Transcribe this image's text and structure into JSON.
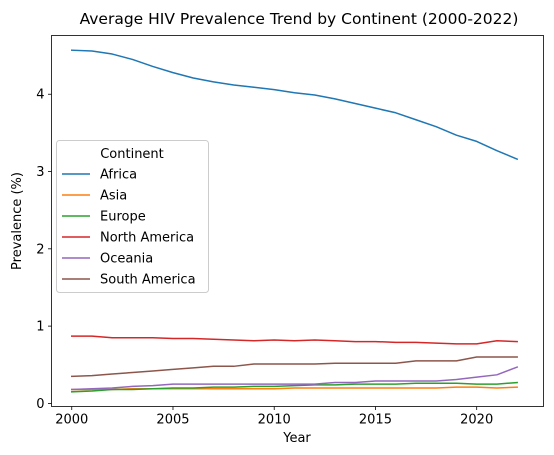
{
  "chart_data": {
    "type": "line",
    "title": "Average HIV Prevalence Trend by Continent (2000-2022)",
    "xlabel": "Year",
    "ylabel": "Prevalence (%)",
    "x": [
      2000,
      2001,
      2002,
      2003,
      2004,
      2005,
      2006,
      2007,
      2008,
      2009,
      2010,
      2011,
      2012,
      2013,
      2014,
      2015,
      2016,
      2017,
      2018,
      2019,
      2020,
      2021,
      2022
    ],
    "xlim": [
      1999,
      2023.3
    ],
    "ylim": [
      -0.04,
      4.76
    ],
    "xticks": [
      2000,
      2005,
      2010,
      2015,
      2020
    ],
    "yticks": [
      0,
      1,
      2,
      3,
      4
    ],
    "xtick_labels": [
      "2000",
      "2005",
      "2010",
      "2015",
      "2020"
    ],
    "ytick_labels": [
      "0",
      "1",
      "2",
      "3",
      "4"
    ],
    "grid": false,
    "legend": {
      "title": "Continent",
      "placement": "center-left"
    },
    "series": [
      {
        "name": "Africa",
        "color": "#1f77b4",
        "values": [
          4.57,
          4.56,
          4.52,
          4.45,
          4.36,
          4.28,
          4.21,
          4.16,
          4.12,
          4.09,
          4.06,
          4.02,
          3.99,
          3.94,
          3.88,
          3.82,
          3.76,
          3.67,
          3.58,
          3.47,
          3.39,
          3.27,
          3.16
        ]
      },
      {
        "name": "Asia",
        "color": "#ff7f0e",
        "values": [
          0.18,
          0.18,
          0.18,
          0.19,
          0.19,
          0.19,
          0.19,
          0.19,
          0.19,
          0.19,
          0.19,
          0.2,
          0.2,
          0.2,
          0.2,
          0.2,
          0.2,
          0.2,
          0.2,
          0.21,
          0.21,
          0.2,
          0.21
        ]
      },
      {
        "name": "Europe",
        "color": "#2ca02c",
        "values": [
          0.15,
          0.16,
          0.18,
          0.18,
          0.19,
          0.2,
          0.2,
          0.21,
          0.21,
          0.22,
          0.22,
          0.23,
          0.24,
          0.24,
          0.25,
          0.25,
          0.25,
          0.26,
          0.26,
          0.26,
          0.25,
          0.25,
          0.27
        ]
      },
      {
        "name": "North America",
        "color": "#d62728",
        "values": [
          0.87,
          0.87,
          0.85,
          0.85,
          0.85,
          0.84,
          0.84,
          0.83,
          0.82,
          0.81,
          0.82,
          0.81,
          0.82,
          0.81,
          0.8,
          0.8,
          0.79,
          0.79,
          0.78,
          0.77,
          0.77,
          0.81,
          0.8
        ]
      },
      {
        "name": "Oceania",
        "color": "#9467bd",
        "values": [
          0.18,
          0.19,
          0.2,
          0.22,
          0.23,
          0.25,
          0.25,
          0.25,
          0.25,
          0.25,
          0.25,
          0.25,
          0.25,
          0.27,
          0.27,
          0.29,
          0.29,
          0.29,
          0.29,
          0.31,
          0.34,
          0.37,
          0.47
        ]
      },
      {
        "name": "South America",
        "color": "#8c564b",
        "values": [
          0.35,
          0.36,
          0.38,
          0.4,
          0.42,
          0.44,
          0.46,
          0.48,
          0.48,
          0.51,
          0.51,
          0.51,
          0.51,
          0.52,
          0.52,
          0.52,
          0.52,
          0.55,
          0.55,
          0.55,
          0.6,
          0.6,
          0.6
        ]
      }
    ]
  }
}
